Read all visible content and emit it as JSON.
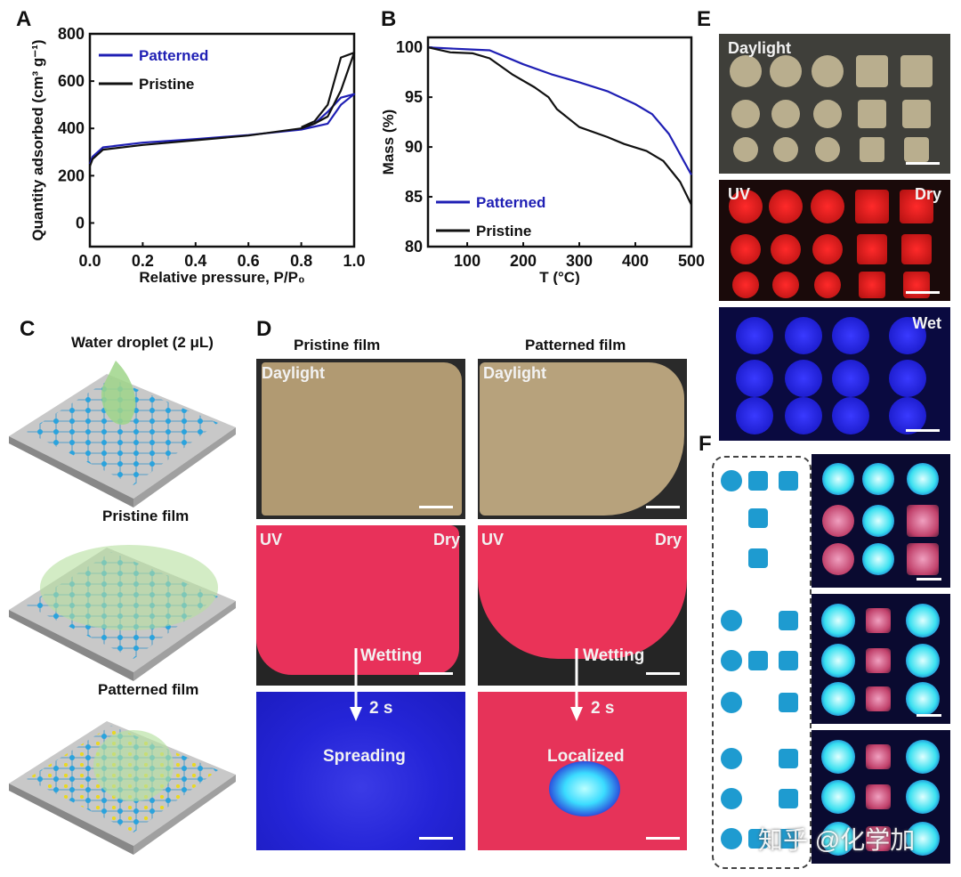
{
  "panel_labels": {
    "a": "A",
    "b": "B",
    "c": "C",
    "d": "D",
    "e": "E",
    "f": "F"
  },
  "chart_data": [
    {
      "type": "line",
      "title": "",
      "xlabel": "Relative pressure, P/P0",
      "ylabel": "Quantity adsorbed (cm3 g-1)",
      "xlim": [
        0,
        1
      ],
      "ylim": [
        -100,
        800
      ],
      "xticks": [
        "0.0",
        "0.2",
        "0.4",
        "0.6",
        "0.8",
        "1.0"
      ],
      "xtick_values": [
        0,
        0.2,
        0.4,
        0.6,
        0.8,
        1.0
      ],
      "yticks": [
        "0",
        "200",
        "400",
        "600",
        "800"
      ],
      "ytick_values": [
        0,
        200,
        400,
        600,
        800
      ],
      "legend": "top-left",
      "series": [
        {
          "name": "Patterned",
          "color": "#1f1fb4",
          "x": [
            0,
            0.01,
            0.05,
            0.2,
            0.4,
            0.6,
            0.8,
            0.9,
            0.95,
            1.0,
            0.95,
            0.9,
            0.85,
            0.8
          ],
          "y": [
            250,
            280,
            320,
            340,
            355,
            372,
            395,
            420,
            500,
            545,
            530,
            470,
            420,
            398
          ]
        },
        {
          "name": "Pristine",
          "color": "#111111",
          "x": [
            0,
            0.01,
            0.05,
            0.2,
            0.4,
            0.6,
            0.8,
            0.85,
            0.9,
            0.95,
            1.0,
            0.95,
            0.9,
            0.85,
            0.8
          ],
          "y": [
            240,
            270,
            310,
            330,
            350,
            370,
            400,
            420,
            450,
            560,
            720,
            700,
            500,
            430,
            405
          ]
        }
      ]
    },
    {
      "type": "line",
      "title": "",
      "xlabel": "T (°C)",
      "ylabel": "Mass (%)",
      "xlim": [
        30,
        500
      ],
      "ylim": [
        80,
        101
      ],
      "xticks": [
        "100",
        "200",
        "300",
        "400",
        "500"
      ],
      "xtick_values": [
        100,
        200,
        300,
        400,
        500
      ],
      "yticks": [
        "80",
        "85",
        "90",
        "95",
        "100"
      ],
      "ytick_values": [
        80,
        85,
        90,
        95,
        100
      ],
      "legend": "bottom-left",
      "series": [
        {
          "name": "Patterned",
          "color": "#1f1fb4",
          "x": [
            30,
            100,
            140,
            200,
            250,
            300,
            350,
            400,
            430,
            460,
            500
          ],
          "y": [
            100,
            99.8,
            99.7,
            98.3,
            97.3,
            96.5,
            95.6,
            94.3,
            93.3,
            91.3,
            87.2
          ]
        },
        {
          "name": "Pristine",
          "color": "#111111",
          "x": [
            30,
            70,
            110,
            140,
            180,
            220,
            245,
            260,
            300,
            350,
            380,
            420,
            450,
            480,
            500
          ],
          "y": [
            100,
            99.5,
            99.4,
            98.9,
            97.3,
            96,
            95,
            93.8,
            92,
            91,
            90.3,
            89.6,
            88.6,
            86.5,
            84.2
          ]
        }
      ]
    }
  ],
  "panel_a": {
    "ylabel": "Quantity adsorbed (cm³ g⁻¹)",
    "xlabel": "Relative pressure, P/P₀"
  },
  "panel_b": {
    "ylabel": "Mass (%)",
    "xlabel": "T (°C)"
  },
  "panel_c": {
    "title1": "Water droplet (2 μL)",
    "title2": "Pristine film",
    "title3": "Patterned film"
  },
  "panel_d": {
    "col1": "Pristine film",
    "col2": "Patterned film",
    "daylight": "Daylight",
    "uv": "UV",
    "dry": "Dry",
    "wetting": "Wetting",
    "time": "2 s",
    "spreading": "Spreading",
    "localized": "Localized"
  },
  "panel_e": {
    "daylight": "Daylight",
    "uv": "UV",
    "dry": "Dry",
    "wet": "Wet"
  },
  "watermark": "知乎 @化学加"
}
